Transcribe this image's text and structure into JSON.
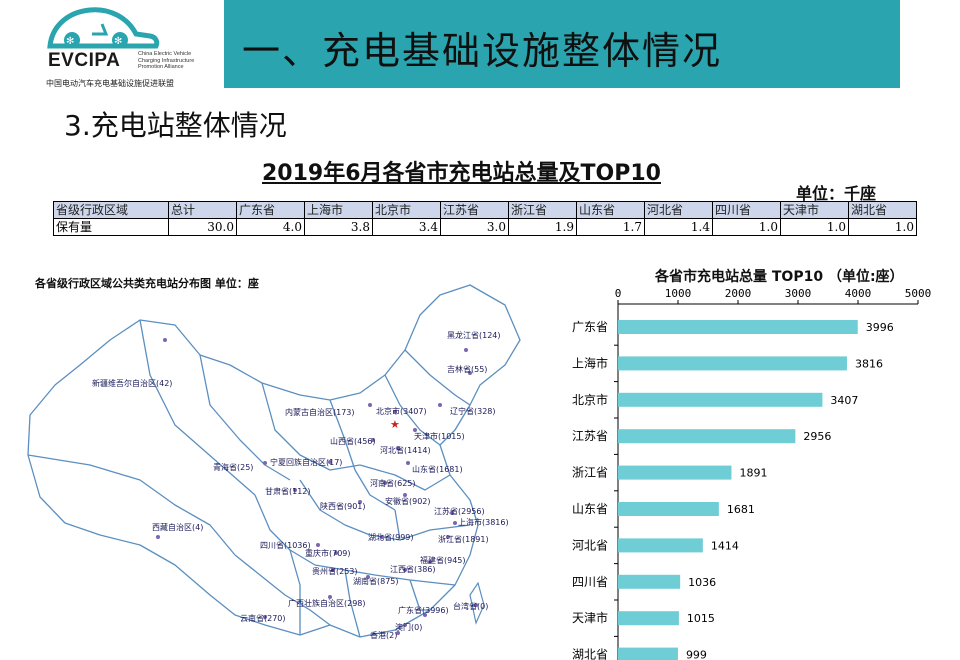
{
  "logo": {
    "brand": "EVCIPA",
    "english": "China Electric Vehicle\nCharging Infrastructure\nPromotion Alliance",
    "chinese": "中国电动汽车充电基础设施促进联盟"
  },
  "header": {
    "title": "一、充电基础设施整体情况"
  },
  "section": {
    "title": "3.充电站整体情况"
  },
  "table": {
    "title": "2019年6月各省市充电站总量及TOP10",
    "unit": "单位：千座",
    "header": [
      "省级行政区域",
      "总计",
      "广东省",
      "上海市",
      "北京市",
      "江苏省",
      "浙江省",
      "山东省",
      "河北省",
      "四川省",
      "天津市",
      "湖北省"
    ],
    "row_label": "保有量",
    "values": [
      "30.0",
      "4.0",
      "3.8",
      "3.4",
      "3.0",
      "1.9",
      "1.7",
      "1.4",
      "1.0",
      "1.0",
      "1.0"
    ]
  },
  "map": {
    "title": "各省级行政区域公共类充电站分布图  单位：座",
    "labels": [
      {
        "text": "黑龙江省(124)"
      },
      {
        "text": "吉林省(55)"
      },
      {
        "text": "新疆维吾尔自治区(42)"
      },
      {
        "text": "内蒙古自治区(173)"
      },
      {
        "text": "北京市(3407)"
      },
      {
        "text": "辽宁省(328)"
      },
      {
        "text": "天津市(1015)"
      },
      {
        "text": "山西省(456)"
      },
      {
        "text": "河北省(1414)"
      },
      {
        "text": "宁夏回族自治区(17)"
      },
      {
        "text": "山东省(1681)"
      },
      {
        "text": "青海省(25)"
      },
      {
        "text": "河南省(625)"
      },
      {
        "text": "甘肃省(112)"
      },
      {
        "text": "安徽省(902)"
      },
      {
        "text": "陕西省(901)"
      },
      {
        "text": "江苏省(2956)"
      },
      {
        "text": "上海市(3816)"
      },
      {
        "text": "西藏自治区(4)"
      },
      {
        "text": "湖北省(999)"
      },
      {
        "text": "浙江省(1891)"
      },
      {
        "text": "四川省(1036)"
      },
      {
        "text": "重庆市(709)"
      },
      {
        "text": "福建省(945)"
      },
      {
        "text": "贵州省(253)"
      },
      {
        "text": "江西省(386)"
      },
      {
        "text": "湖南省(875)"
      },
      {
        "text": "广西壮族自治区(298)"
      },
      {
        "text": "广东省(3996)"
      },
      {
        "text": "台湾省(0)"
      },
      {
        "text": "云南省(270)"
      },
      {
        "text": "澳门(0)"
      },
      {
        "text": "香港(2)"
      }
    ]
  },
  "chart_data": {
    "type": "bar",
    "orientation": "horizontal",
    "title": "各省市充电站总量 TOP10  （单位:座）",
    "categories": [
      "广东省",
      "上海市",
      "北京市",
      "江苏省",
      "浙江省",
      "山东省",
      "河北省",
      "四川省",
      "天津市",
      "湖北省"
    ],
    "values": [
      3996,
      3816,
      3407,
      2956,
      1891,
      1681,
      1414,
      1036,
      1015,
      999
    ],
    "xlim": [
      0,
      5000
    ],
    "xticks": [
      "0",
      "1000",
      "2000",
      "3000",
      "4000",
      "5000"
    ],
    "axis_position": "top",
    "bar_color": "#6fcdd6",
    "grid": false
  },
  "colors": {
    "header_bar": "#2aa4ae",
    "table_header": "#cdd6ea",
    "map_border": "#5b8fc0",
    "map_dot": "#7b66b0"
  }
}
